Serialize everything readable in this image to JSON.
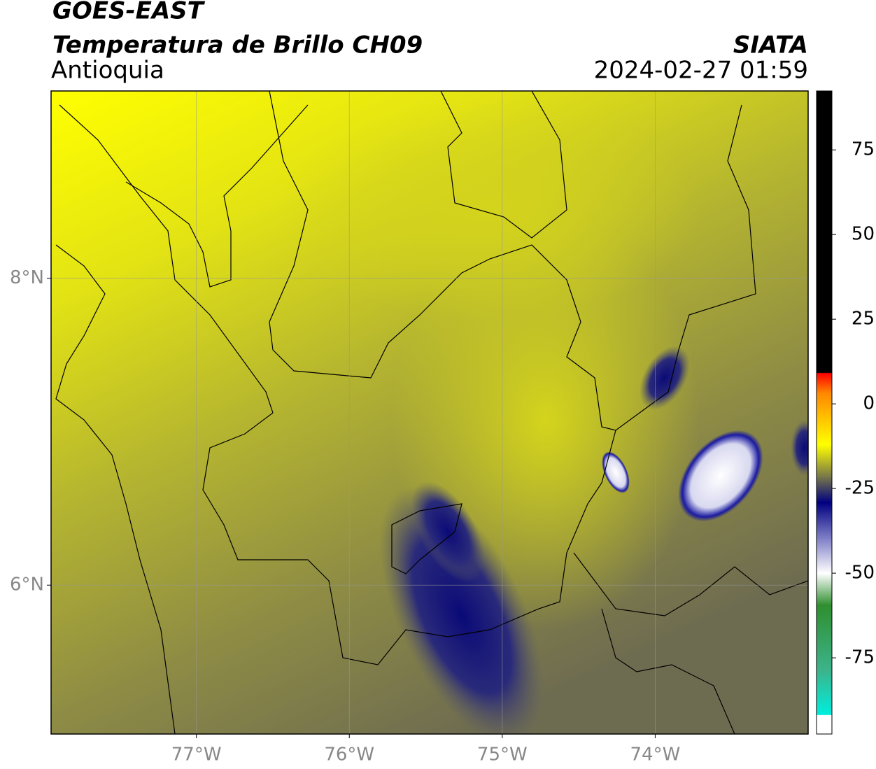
{
  "header": {
    "title": "GOES-EAST",
    "subtitle": "Temperatura de Brillo CH09",
    "region": "Antioquia",
    "source": "SIATA",
    "datetime": "2024-02-27 01:59"
  },
  "map": {
    "lonlim": [
      -77.95,
      -73.0
    ],
    "latlim": [
      5.03,
      9.22
    ],
    "lon_ticks": [
      {
        "value": -77,
        "label": "77°W"
      },
      {
        "value": -76,
        "label": "76°W"
      },
      {
        "value": -75,
        "label": "75°W"
      },
      {
        "value": -74,
        "label": "74°W"
      }
    ],
    "lat_ticks": [
      {
        "value": 8,
        "label": "8°N"
      },
      {
        "value": 6,
        "label": "6°N"
      }
    ]
  },
  "colorbar": {
    "lim": [
      -97.5,
      92.4
    ],
    "ticks": [
      75,
      50,
      25,
      0,
      -25,
      -50,
      -75
    ]
  }
}
